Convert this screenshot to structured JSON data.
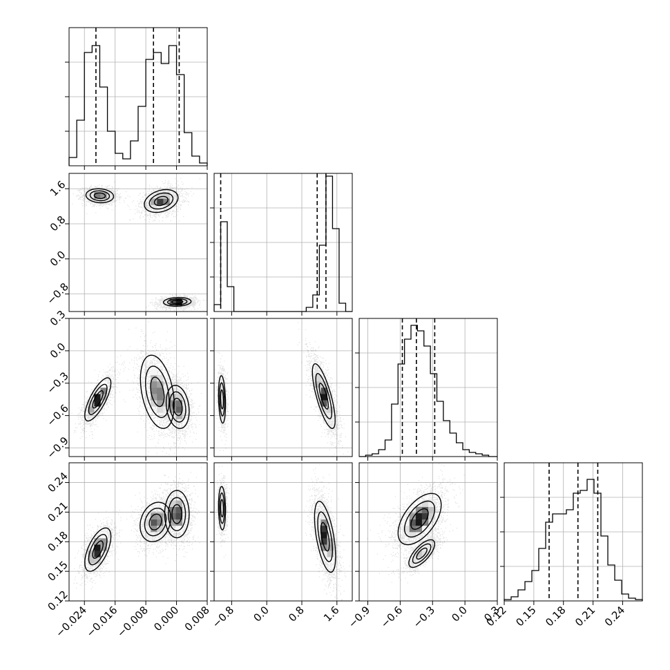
{
  "chart_data": {
    "type": "corner",
    "grid": true,
    "legend": "none",
    "style": {
      "hist_color": "#000000",
      "grid_color": "#b0b0b0",
      "point_color": "#000000",
      "contour_color": "#000000"
    },
    "parameters": [
      {
        "range": [
          -0.028,
          0.008
        ],
        "ticks": [
          -0.024,
          -0.016,
          -0.008,
          0.0,
          0.008
        ],
        "tick_labels": [
          "−0.024",
          "−0.016",
          "−0.008",
          "0.000",
          "0.008"
        ],
        "quantiles": [
          -0.021,
          -0.006,
          0.0007
        ],
        "hist": {
          "edges": [
            -0.028,
            -0.026,
            -0.024,
            -0.022,
            -0.02,
            -0.018,
            -0.016,
            -0.014,
            -0.012,
            -0.01,
            -0.008,
            -0.006,
            -0.004,
            -0.002,
            0.0,
            0.002,
            0.004,
            0.006,
            0.008
          ],
          "counts": [
            0.06,
            0.33,
            0.82,
            0.87,
            0.57,
            0.25,
            0.09,
            0.05,
            0.18,
            0.43,
            0.77,
            0.82,
            0.74,
            0.87,
            0.66,
            0.24,
            0.07,
            0.02
          ],
          "ymax": 1.0
        }
      },
      {
        "range": [
          -1.2,
          1.95
        ],
        "ticks": [
          -0.8,
          0.0,
          0.8,
          1.6
        ],
        "tick_labels": [
          "−0.8",
          "0.0",
          "0.8",
          "1.6"
        ],
        "quantiles": [
          -1.05,
          1.15,
          1.35
        ],
        "hist": {
          "edges": [
            -1.2,
            -1.05,
            -0.9,
            -0.75,
            -0.6,
            -0.45,
            -0.3,
            -0.15,
            0.0,
            0.15,
            0.3,
            0.45,
            0.6,
            0.75,
            0.9,
            1.05,
            1.2,
            1.35,
            1.5,
            1.65,
            1.8,
            1.95
          ],
          "counts": [
            0.05,
            0.65,
            0.18,
            0.0,
            0.0,
            0.0,
            0.0,
            0.0,
            0.0,
            0.0,
            0.0,
            0.0,
            0.0,
            0.0,
            0.03,
            0.12,
            0.48,
            0.98,
            0.6,
            0.06,
            0.0
          ],
          "ymax": 1.0
        }
      },
      {
        "range": [
          -0.98,
          0.3
        ],
        "ticks": [
          -0.9,
          -0.6,
          -0.3,
          0.0,
          0.3
        ],
        "tick_labels": [
          "−0.9",
          "−0.6",
          "−0.3",
          "0.0",
          "0.3"
        ],
        "quantiles": [
          -0.58,
          -0.45,
          -0.28
        ],
        "hist": {
          "edges": [
            -0.98,
            -0.92,
            -0.86,
            -0.8,
            -0.74,
            -0.68,
            -0.62,
            -0.56,
            -0.5,
            -0.44,
            -0.38,
            -0.32,
            -0.26,
            -0.2,
            -0.14,
            -0.08,
            -0.02,
            0.04,
            0.1,
            0.16,
            0.22,
            0.3
          ],
          "counts": [
            0.0,
            0.01,
            0.02,
            0.05,
            0.12,
            0.38,
            0.67,
            0.85,
            0.95,
            0.91,
            0.8,
            0.6,
            0.4,
            0.26,
            0.17,
            0.1,
            0.05,
            0.03,
            0.02,
            0.01,
            0.0
          ],
          "ymax": 1.0
        }
      },
      {
        "range": [
          0.12,
          0.26
        ],
        "ticks": [
          0.12,
          0.15,
          0.18,
          0.21,
          0.24
        ],
        "tick_labels": [
          "0.12",
          "0.15",
          "0.18",
          "0.21",
          "0.24"
        ],
        "quantiles": [
          0.1655,
          0.1947,
          0.2148
        ],
        "hist": {
          "edges": [
            0.12,
            0.127,
            0.134,
            0.141,
            0.148,
            0.155,
            0.162,
            0.169,
            0.176,
            0.183,
            0.19,
            0.197,
            0.204,
            0.211,
            0.218,
            0.225,
            0.232,
            0.239,
            0.246,
            0.253,
            0.26
          ],
          "counts": [
            0.01,
            0.03,
            0.08,
            0.14,
            0.22,
            0.38,
            0.57,
            0.63,
            0.63,
            0.66,
            0.78,
            0.8,
            0.88,
            0.78,
            0.47,
            0.26,
            0.15,
            0.05,
            0.02,
            0.01
          ],
          "ymax": 1.0
        }
      }
    ],
    "joint_modes": {
      "1-0": [
        {
          "mean": [
            -0.02,
            1.44
          ],
          "sd": [
            0.0018,
            0.08
          ],
          "rho": -0.1,
          "weight": 1
        },
        {
          "mean": [
            -0.004,
            1.32
          ],
          "sd": [
            0.0022,
            0.13
          ],
          "rho": 0.3,
          "weight": 1.1
        },
        {
          "mean": [
            0.0002,
            -0.98
          ],
          "sd": [
            0.0018,
            0.05
          ],
          "rho": 0.1,
          "weight": 1.3
        }
      ],
      "2-0": [
        {
          "mean": [
            -0.0205,
            -0.45
          ],
          "sd": [
            0.0017,
            0.1
          ],
          "rho": 0.75,
          "weight": 1
        },
        {
          "mean": [
            -0.005,
            -0.38
          ],
          "sd": [
            0.0022,
            0.17
          ],
          "rho": -0.35,
          "weight": 1
        },
        {
          "mean": [
            0.0003,
            -0.52
          ],
          "sd": [
            0.0015,
            0.1
          ],
          "rho": -0.2,
          "weight": 1.1
        }
      ],
      "2-1": [
        {
          "mean": [
            -1.02,
            -0.45
          ],
          "sd": [
            0.04,
            0.11
          ],
          "rho": -0.2,
          "weight": 1
        },
        {
          "mean": [
            1.3,
            -0.42
          ],
          "sd": [
            0.13,
            0.15
          ],
          "rho": -0.75,
          "weight": 2.1
        }
      ],
      "3-0": [
        {
          "mean": [
            -0.0205,
            0.172
          ],
          "sd": [
            0.0017,
            0.011
          ],
          "rho": 0.6,
          "weight": 1
        },
        {
          "mean": [
            -0.0055,
            0.2
          ],
          "sd": [
            0.002,
            0.01
          ],
          "rho": 0.2,
          "weight": 1
        },
        {
          "mean": [
            0.0001,
            0.208
          ],
          "sd": [
            0.0016,
            0.012
          ],
          "rho": 0.0,
          "weight": 1.1
        }
      ],
      "3-1": [
        {
          "mean": [
            -1.02,
            0.214
          ],
          "sd": [
            0.04,
            0.011
          ],
          "rho": -0.1,
          "weight": 1
        },
        {
          "mean": [
            1.33,
            0.185
          ],
          "sd": [
            0.12,
            0.018
          ],
          "rho": -0.55,
          "weight": 2.1
        }
      ],
      "3-2": [
        {
          "mean": [
            -0.42,
            0.203
          ],
          "sd": [
            0.1,
            0.013
          ],
          "rho": 0.55,
          "weight": 1.5
        },
        {
          "mean": [
            -0.4,
            0.168
          ],
          "sd": [
            0.06,
            0.007
          ],
          "rho": 0.7,
          "weight": 0.8
        }
      ]
    }
  }
}
